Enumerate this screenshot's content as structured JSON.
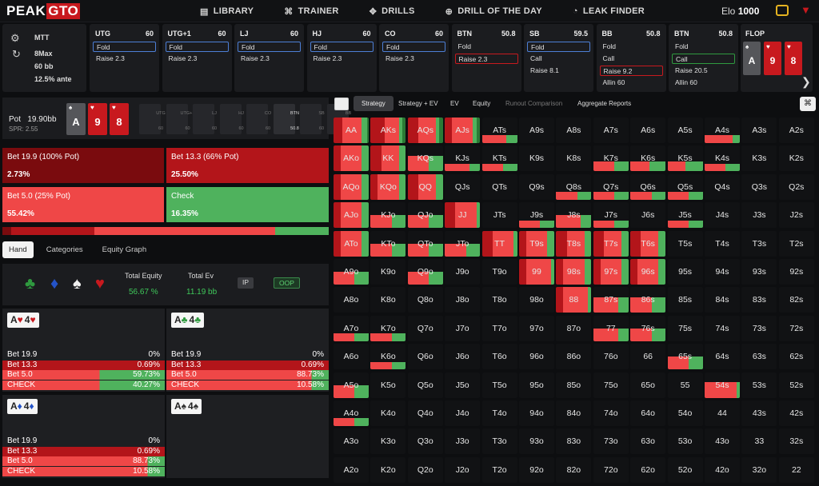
{
  "nav": {
    "logo_a": "PEAK",
    "logo_b": "GTO",
    "items": [
      {
        "icon": "library-icon",
        "glyph": "▤",
        "label": "LIBRARY"
      },
      {
        "icon": "gamepad-icon",
        "glyph": "⌘",
        "label": "TRAINER"
      },
      {
        "icon": "drills-icon",
        "glyph": "✥",
        "label": "DRILLS"
      },
      {
        "icon": "plus-circle-icon",
        "glyph": "⊕",
        "label": "DRILL OF THE DAY"
      },
      {
        "icon": "drop-icon",
        "glyph": "◔",
        "label": "LEAK FINDER"
      }
    ],
    "elo_label": "Elo",
    "elo_value": "1000"
  },
  "info": {
    "game": "MTT",
    "players": "8Max",
    "stack": "60 bb",
    "ante": "12.5% ante"
  },
  "positions": [
    {
      "name": "UTG",
      "stack": "60",
      "actions": [
        {
          "t": "Fold",
          "sel": "blue"
        },
        {
          "t": "Raise 2.3",
          "sel": ""
        }
      ]
    },
    {
      "name": "UTG+1",
      "stack": "60",
      "actions": [
        {
          "t": "Fold",
          "sel": "blue"
        },
        {
          "t": "Raise 2.3",
          "sel": ""
        }
      ]
    },
    {
      "name": "LJ",
      "stack": "60",
      "actions": [
        {
          "t": "Fold",
          "sel": "blue"
        },
        {
          "t": "Raise 2.3",
          "sel": ""
        }
      ]
    },
    {
      "name": "HJ",
      "stack": "60",
      "actions": [
        {
          "t": "Fold",
          "sel": "blue"
        },
        {
          "t": "Raise 2.3",
          "sel": ""
        }
      ]
    },
    {
      "name": "CO",
      "stack": "60",
      "actions": [
        {
          "t": "Fold",
          "sel": "blue"
        },
        {
          "t": "Raise 2.3",
          "sel": ""
        }
      ]
    },
    {
      "name": "BTN",
      "stack": "50.8",
      "actions": [
        {
          "t": "Fold",
          "sel": ""
        },
        {
          "t": "Raise 2.3",
          "sel": "red"
        }
      ]
    },
    {
      "name": "SB",
      "stack": "59.5",
      "actions": [
        {
          "t": "Fold",
          "sel": "blue"
        },
        {
          "t": "Call",
          "sel": ""
        },
        {
          "t": "Raise 8.1",
          "sel": ""
        }
      ]
    },
    {
      "name": "BB",
      "stack": "50.8",
      "actions": [
        {
          "t": "Fold",
          "sel": ""
        },
        {
          "t": "Call",
          "sel": ""
        },
        {
          "t": "Raise 9.2",
          "sel": "red"
        },
        {
          "t": "Allin 60",
          "sel": ""
        }
      ]
    },
    {
      "name": "BTN",
      "stack": "50.8",
      "actions": [
        {
          "t": "Fold",
          "sel": ""
        },
        {
          "t": "Call",
          "sel": "green"
        },
        {
          "t": "Raise 20.5",
          "sel": ""
        },
        {
          "t": "Allin 60",
          "sel": ""
        }
      ]
    }
  ],
  "flop": {
    "label": "FLOP",
    "cards": [
      {
        "r": "A",
        "s": "♠",
        "c": "#55565a"
      },
      {
        "r": "9",
        "s": "♥",
        "c": "#c8191e"
      },
      {
        "r": "8",
        "s": "♥",
        "c": "#c8191e"
      }
    ]
  },
  "pot": {
    "label": "Pot",
    "value": "19.90bb",
    "spr": "SPR: 2.55"
  },
  "board": [
    {
      "r": "A",
      "s": "♠",
      "c": "#55565a"
    },
    {
      "r": "9",
      "s": "♥",
      "c": "#c8191e"
    },
    {
      "r": "8",
      "s": "♥",
      "c": "#c8191e"
    }
  ],
  "minis": [
    {
      "n": "UTG",
      "s": "60"
    },
    {
      "n": "UTG+1",
      "s": "60"
    },
    {
      "n": "LJ",
      "s": "60"
    },
    {
      "n": "HJ",
      "s": "60"
    },
    {
      "n": "CO",
      "s": "60"
    },
    {
      "n": "BTN",
      "s": "50.8"
    },
    {
      "n": "SB",
      "s": "60"
    },
    {
      "n": "BB",
      "s": "60"
    }
  ],
  "big_actions": [
    {
      "label": "Bet 19.9 (100% Pot)",
      "pct": "2.73%",
      "color": "#7a0b0e"
    },
    {
      "label": "Bet 13.3 (66% Pot)",
      "pct": "25.50%",
      "color": "#b3151a"
    },
    {
      "label": "Bet 5.0 (25% Pot)",
      "pct": "55.42%",
      "color": "#ef4747"
    },
    {
      "label": "Check",
      "pct": "16.35%",
      "color": "#4fb25d"
    }
  ],
  "bar": [
    {
      "v": 2.73,
      "c": "#7a0b0e"
    },
    {
      "v": 25.5,
      "c": "#b3151a"
    },
    {
      "v": 55.42,
      "c": "#ef4747"
    },
    {
      "v": 16.35,
      "c": "#4fb25d"
    }
  ],
  "hand_tabs": [
    "Hand",
    "Categories",
    "Equity Graph"
  ],
  "equity": {
    "total_equity_label": "Total Equity",
    "total_equity": "56.67 %",
    "total_ev_label": "Total Ev",
    "total_ev": "11.19 bb",
    "ip": "IP",
    "oop": "OOP"
  },
  "hands": [
    {
      "r1": "A",
      "s1": "♥",
      "r2": "4",
      "s2": "♥",
      "col": "#c8191e",
      "rows": [
        {
          "n": "Bet 19.9",
          "v": "0%",
          "f": 0
        },
        {
          "n": "Bet 13.3",
          "v": "0.69%",
          "f": 0.69
        },
        {
          "n": "Bet 5.0",
          "v": "59.73%",
          "f": 59.73
        },
        {
          "n": "CHECK",
          "v": "40.27%",
          "f": 40.27
        }
      ]
    },
    {
      "r1": "A",
      "s1": "♣",
      "r2": "4",
      "s2": "♣",
      "col": "#2f9a3f",
      "rows": [
        {
          "n": "Bet 19.9",
          "v": "0%",
          "f": 0
        },
        {
          "n": "Bet 13.3",
          "v": "0.69%",
          "f": 0.69
        },
        {
          "n": "Bet 5.0",
          "v": "88.73%",
          "f": 88.73
        },
        {
          "n": "CHECK",
          "v": "10.58%",
          "f": 10.58
        }
      ]
    },
    {
      "r1": "A",
      "s1": "♦",
      "r2": "4",
      "s2": "♦",
      "col": "#2453c8",
      "rows": [
        {
          "n": "Bet 19.9",
          "v": "0%",
          "f": 0
        },
        {
          "n": "Bet 13.3",
          "v": "0.69%",
          "f": 0.69
        },
        {
          "n": "Bet 5.0",
          "v": "88.73%",
          "f": 88.73
        },
        {
          "n": "CHECK",
          "v": "10.58%",
          "f": 10.58
        }
      ]
    },
    {
      "r1": "A",
      "s1": "♠",
      "r2": "4",
      "s2": "♠",
      "col": "#333",
      "rows": []
    }
  ],
  "strategy_tabs": [
    {
      "t": "Strategy",
      "a": true
    },
    {
      "t": "Strategy + EV"
    },
    {
      "t": "EV"
    },
    {
      "t": "Equity"
    },
    {
      "t": "Runout Comparison",
      "d": true
    },
    {
      "t": "Aggregate Reports"
    }
  ],
  "grid": [
    [
      "AA",
      "AKs",
      "AQs",
      "AJs",
      "ATs",
      "A9s",
      "A8s",
      "A7s",
      "A6s",
      "A5s",
      "A4s",
      "A3s",
      "A2s"
    ],
    [
      "AKo",
      "KK",
      "KQs",
      "KJs",
      "KTs",
      "K9s",
      "K8s",
      "K7s",
      "K6s",
      "K5s",
      "K4s",
      "K3s",
      "K2s"
    ],
    [
      "AQo",
      "KQo",
      "QQ",
      "QJs",
      "QTs",
      "Q9s",
      "Q8s",
      "Q7s",
      "Q6s",
      "Q5s",
      "Q4s",
      "Q3s",
      "Q2s"
    ],
    [
      "AJo",
      "KJo",
      "QJo",
      "JJ",
      "JTs",
      "J9s",
      "J8s",
      "J7s",
      "J6s",
      "J5s",
      "J4s",
      "J3s",
      "J2s"
    ],
    [
      "ATo",
      "KTo",
      "QTo",
      "JTo",
      "TT",
      "T9s",
      "T8s",
      "T7s",
      "T6s",
      "T5s",
      "T4s",
      "T3s",
      "T2s"
    ],
    [
      "A9o",
      "K9o",
      "Q9o",
      "J9o",
      "T9o",
      "99",
      "98s",
      "97s",
      "96s",
      "95s",
      "94s",
      "93s",
      "92s"
    ],
    [
      "A8o",
      "K8o",
      "Q8o",
      "J8o",
      "T8o",
      "98o",
      "88",
      "87s",
      "86s",
      "85s",
      "84s",
      "83s",
      "82s"
    ],
    [
      "A7o",
      "K7o",
      "Q7o",
      "J7o",
      "T7o",
      "97o",
      "87o",
      "77",
      "76s",
      "75s",
      "74s",
      "73s",
      "72s"
    ],
    [
      "A6o",
      "K6o",
      "Q6o",
      "J6o",
      "T6o",
      "96o",
      "86o",
      "76o",
      "66",
      "65s",
      "64s",
      "63s",
      "62s"
    ],
    [
      "A5o",
      "K5o",
      "Q5o",
      "J5o",
      "T5o",
      "95o",
      "85o",
      "75o",
      "65o",
      "55",
      "54s",
      "53s",
      "52s"
    ],
    [
      "A4o",
      "K4o",
      "Q4o",
      "J4o",
      "T4o",
      "94o",
      "84o",
      "74o",
      "64o",
      "54o",
      "44",
      "43s",
      "42s"
    ],
    [
      "A3o",
      "K3o",
      "Q3o",
      "J3o",
      "T3o",
      "93o",
      "83o",
      "73o",
      "63o",
      "53o",
      "43o",
      "33",
      "32s"
    ],
    [
      "A2o",
      "K2o",
      "Q2o",
      "J2o",
      "T2o",
      "92o",
      "82o",
      "72o",
      "62o",
      "52o",
      "42o",
      "32o",
      "22"
    ]
  ],
  "grid_fill": {
    "AA": [
      1,
      0.25,
      0.55,
      0.15,
      0.05
    ],
    "AKs": [
      1,
      0.4,
      0.4,
      0.1,
      0.1
    ],
    "AQs": [
      1,
      0.3,
      0.5,
      0.1,
      0.1
    ],
    "AJs": [
      1,
      0.2,
      0.6,
      0.1,
      0.1
    ],
    "ATs": [
      0.3,
      0,
      0.7,
      0.3,
      0
    ],
    "A4s": [
      0.3,
      0,
      0.8,
      0.2,
      0
    ],
    "AKo": [
      1,
      0.2,
      0.6,
      0.2,
      0
    ],
    "KK": [
      1,
      0.3,
      0.5,
      0.2,
      0
    ],
    "KQs": [
      0.6,
      0,
      0.6,
      0.4,
      0
    ],
    "KJs": [
      0.3,
      0,
      0.7,
      0.3,
      0
    ],
    "KTs": [
      0.3,
      0,
      0.6,
      0.4,
      0
    ],
    "K7s": [
      0.4,
      0,
      0.6,
      0.4,
      0
    ],
    "K6s": [
      0.4,
      0,
      0.55,
      0.45,
      0
    ],
    "K5s": [
      0.4,
      0,
      0.5,
      0.5,
      0
    ],
    "K4s": [
      0.3,
      0,
      0.6,
      0.4,
      0
    ],
    "AQo": [
      1,
      0.2,
      0.6,
      0.2,
      0
    ],
    "KQo": [
      1,
      0.2,
      0.6,
      0.2,
      0
    ],
    "QQ": [
      1,
      0.3,
      0.5,
      0.2,
      0
    ],
    "Q8s": [
      0.3,
      0,
      0.6,
      0.4,
      0
    ],
    "Q7s": [
      0.3,
      0,
      0.6,
      0.4,
      0
    ],
    "Q6s": [
      0.3,
      0,
      0.6,
      0.4,
      0
    ],
    "Q5s": [
      0.3,
      0,
      0.6,
      0.4,
      0
    ],
    "AJo": [
      1,
      0.2,
      0.6,
      0.2,
      0
    ],
    "KJo": [
      0.5,
      0,
      0.6,
      0.4,
      0
    ],
    "QJo": [
      0.5,
      0,
      0.6,
      0.4,
      0
    ],
    "JJ": [
      1,
      0.3,
      0.6,
      0.1,
      0
    ],
    "J9s": [
      0.3,
      0,
      0.6,
      0.4,
      0
    ],
    "J8s": [
      0.5,
      0,
      0.7,
      0.3,
      0
    ],
    "J7s": [
      0.3,
      0,
      0.6,
      0.4,
      0
    ],
    "J5s": [
      0.3,
      0,
      0.6,
      0.4,
      0
    ],
    "ATo": [
      1,
      0.2,
      0.6,
      0.2,
      0
    ],
    "KTo": [
      0.5,
      0,
      0.6,
      0.4,
      0
    ],
    "QTo": [
      0.5,
      0,
      0.6,
      0.4,
      0
    ],
    "JTo": [
      0.5,
      0,
      0.6,
      0.4,
      0
    ],
    "TT": [
      1,
      0.3,
      0.6,
      0.1,
      0
    ],
    "T9s": [
      1,
      0.2,
      0.6,
      0.2,
      0
    ],
    "T8s": [
      1,
      0.3,
      0.5,
      0.2,
      0
    ],
    "T7s": [
      1,
      0.3,
      0.5,
      0.2,
      0
    ],
    "T6s": [
      1,
      0.3,
      0.5,
      0.2,
      0
    ],
    "A9o": [
      0.5,
      0,
      0.6,
      0.4,
      0
    ],
    "Q9o": [
      0.5,
      0,
      0.6,
      0.4,
      0
    ],
    "99": [
      1,
      0.2,
      0.7,
      0.1,
      0
    ],
    "98s": [
      1,
      0.2,
      0.6,
      0.2,
      0
    ],
    "97s": [
      1,
      0.2,
      0.6,
      0.2,
      0
    ],
    "96s": [
      1,
      0.2,
      0.6,
      0.2,
      0
    ],
    "88": [
      1,
      0.2,
      0.7,
      0.1,
      0
    ],
    "87s": [
      0.6,
      0,
      0.7,
      0.3,
      0
    ],
    "86s": [
      0.6,
      0,
      0.6,
      0.4,
      0
    ],
    "A7o": [
      0.3,
      0,
      0.6,
      0.4,
      0
    ],
    "K7o": [
      0.3,
      0,
      0.6,
      0.4,
      0
    ],
    "77": [
      0.5,
      0,
      0.7,
      0.3,
      0
    ],
    "76s": [
      0.5,
      0,
      0.6,
      0.4,
      0
    ],
    "K6o": [
      0.3,
      0,
      0.6,
      0.4,
      0
    ],
    "65s": [
      0.5,
      0,
      0.6,
      0.4,
      0
    ],
    "A5o": [
      0.5,
      0,
      0.6,
      0.4,
      0
    ],
    "54s": [
      0.6,
      0,
      0.9,
      0.1,
      0
    ],
    "A4o": [
      0.3,
      0,
      0.6,
      0.4,
      0
    ]
  }
}
